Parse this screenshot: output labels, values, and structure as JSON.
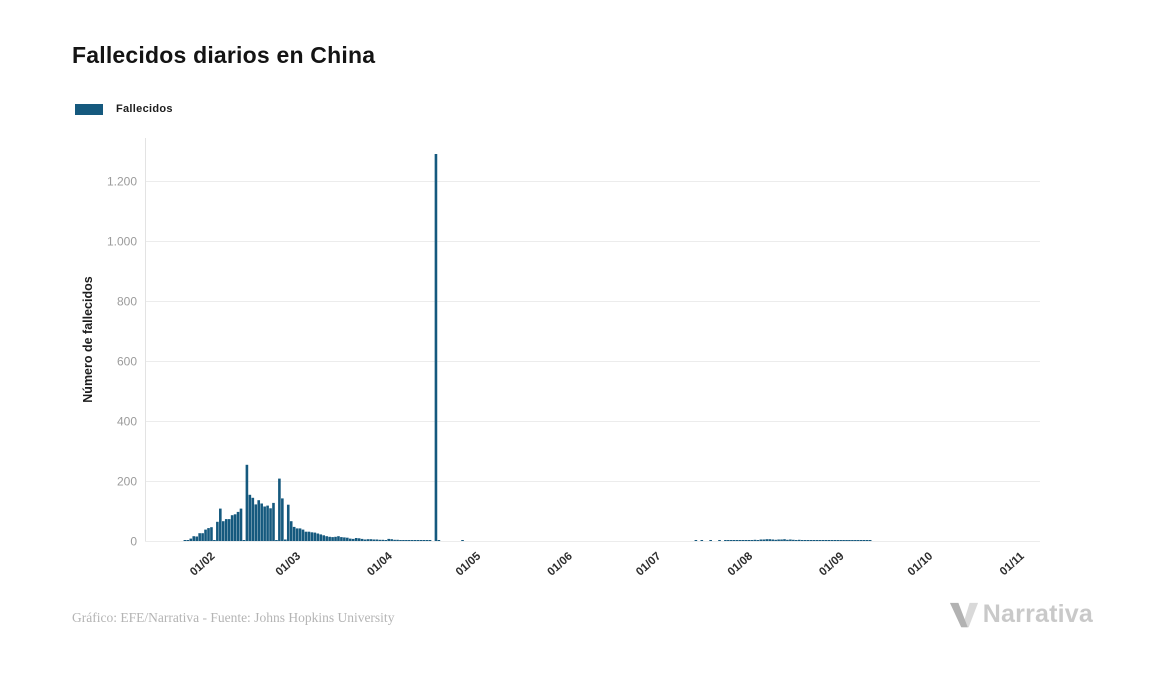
{
  "page": {
    "title": "Fallecidos diarios en China",
    "footer_credit": "Gráfico: EFE/Narrativa - Fuente: Johns Hopkins University",
    "brand": "Narrativa"
  },
  "legend": {
    "items": [
      {
        "label": "Fallecidos",
        "color": "#15597e"
      }
    ]
  },
  "colors": {
    "bar": "#15597e",
    "grid": "#ececec",
    "axis_line": "#e3e3e3",
    "y_tick_text": "#9b9b9b",
    "x_tick_text": "#2e2e2e",
    "axis_title_text": "#1c1c1c"
  },
  "chart_data": {
    "type": "bar",
    "title": "Fallecidos diarios en China",
    "series_name": "Fallecidos",
    "xlabel": "",
    "ylabel": "Número de fallecidos",
    "grid": true,
    "legend_position": "top-left",
    "ylim": [
      0,
      1340
    ],
    "bar_color": "#15597e",
    "y_ticks": [
      {
        "value": 0,
        "label": "0"
      },
      {
        "value": 200,
        "label": "200"
      },
      {
        "value": 400,
        "label": "400"
      },
      {
        "value": 600,
        "label": "600"
      },
      {
        "value": 800,
        "label": "800"
      },
      {
        "value": 1000,
        "label": "1.000"
      },
      {
        "value": 1200,
        "label": "1.200"
      }
    ],
    "x_domain": [
      "2020-01-10",
      "2020-11-08"
    ],
    "x_ticks": [
      {
        "date": "2020-02-01",
        "label": "01/02"
      },
      {
        "date": "2020-03-01",
        "label": "01/03"
      },
      {
        "date": "2020-04-01",
        "label": "01/04"
      },
      {
        "date": "2020-05-01",
        "label": "01/05"
      },
      {
        "date": "2020-06-01",
        "label": "01/06"
      },
      {
        "date": "2020-07-01",
        "label": "01/07"
      },
      {
        "date": "2020-08-01",
        "label": "01/08"
      },
      {
        "date": "2020-09-01",
        "label": "01/09"
      },
      {
        "date": "2020-10-01",
        "label": "01/10"
      },
      {
        "date": "2020-11-01",
        "label": "01/11"
      }
    ],
    "points_note": "daily deaths; dates not listed have value 0",
    "points": [
      [
        "2020-01-23",
        1
      ],
      [
        "2020-01-24",
        2
      ],
      [
        "2020-01-25",
        8
      ],
      [
        "2020-01-26",
        16
      ],
      [
        "2020-01-27",
        15
      ],
      [
        "2020-01-28",
        26
      ],
      [
        "2020-01-29",
        26
      ],
      [
        "2020-01-30",
        38
      ],
      [
        "2020-01-31",
        43
      ],
      [
        "2020-02-01",
        46
      ],
      [
        "2020-02-02",
        3
      ],
      [
        "2020-02-03",
        64
      ],
      [
        "2020-02-04",
        108
      ],
      [
        "2020-02-05",
        66
      ],
      [
        "2020-02-06",
        73
      ],
      [
        "2020-02-07",
        73
      ],
      [
        "2020-02-08",
        86
      ],
      [
        "2020-02-09",
        89
      ],
      [
        "2020-02-10",
        97
      ],
      [
        "2020-02-11",
        108
      ],
      [
        "2020-02-12",
        2
      ],
      [
        "2020-02-13",
        254
      ],
      [
        "2020-02-14",
        154
      ],
      [
        "2020-02-15",
        144
      ],
      [
        "2020-02-16",
        122
      ],
      [
        "2020-02-17",
        136
      ],
      [
        "2020-02-18",
        125
      ],
      [
        "2020-02-19",
        115
      ],
      [
        "2020-02-20",
        118
      ],
      [
        "2020-02-21",
        109
      ],
      [
        "2020-02-22",
        127
      ],
      [
        "2020-02-23",
        3
      ],
      [
        "2020-02-24",
        208
      ],
      [
        "2020-02-25",
        142
      ],
      [
        "2020-02-26",
        5
      ],
      [
        "2020-02-27",
        121
      ],
      [
        "2020-02-28",
        66
      ],
      [
        "2020-02-29",
        47
      ],
      [
        "2020-03-01",
        42
      ],
      [
        "2020-03-02",
        42
      ],
      [
        "2020-03-03",
        38
      ],
      [
        "2020-03-04",
        31
      ],
      [
        "2020-03-05",
        31
      ],
      [
        "2020-03-06",
        29
      ],
      [
        "2020-03-07",
        28
      ],
      [
        "2020-03-08",
        25
      ],
      [
        "2020-03-09",
        22
      ],
      [
        "2020-03-10",
        19
      ],
      [
        "2020-03-11",
        16
      ],
      [
        "2020-03-12",
        14
      ],
      [
        "2020-03-13",
        13
      ],
      [
        "2020-03-14",
        14
      ],
      [
        "2020-03-15",
        16
      ],
      [
        "2020-03-16",
        13
      ],
      [
        "2020-03-17",
        12
      ],
      [
        "2020-03-18",
        11
      ],
      [
        "2020-03-19",
        8
      ],
      [
        "2020-03-20",
        7
      ],
      [
        "2020-03-21",
        10
      ],
      [
        "2020-03-22",
        9
      ],
      [
        "2020-03-23",
        7
      ],
      [
        "2020-03-24",
        5
      ],
      [
        "2020-03-25",
        6
      ],
      [
        "2020-03-26",
        6
      ],
      [
        "2020-03-27",
        5
      ],
      [
        "2020-03-28",
        5
      ],
      [
        "2020-03-29",
        4
      ],
      [
        "2020-03-30",
        4
      ],
      [
        "2020-03-31",
        3
      ],
      [
        "2020-04-01",
        7
      ],
      [
        "2020-04-02",
        6
      ],
      [
        "2020-04-03",
        4
      ],
      [
        "2020-04-04",
        4
      ],
      [
        "2020-04-05",
        3
      ],
      [
        "2020-04-06",
        2
      ],
      [
        "2020-04-07",
        2
      ],
      [
        "2020-04-08",
        2
      ],
      [
        "2020-04-09",
        1
      ],
      [
        "2020-04-10",
        1
      ],
      [
        "2020-04-11",
        2
      ],
      [
        "2020-04-12",
        1
      ],
      [
        "2020-04-13",
        1
      ],
      [
        "2020-04-14",
        1
      ],
      [
        "2020-04-15",
        1
      ],
      [
        "2020-04-17",
        1290
      ],
      [
        "2020-04-18",
        1
      ],
      [
        "2020-04-26",
        1
      ],
      [
        "2020-07-14",
        1
      ],
      [
        "2020-07-16",
        1
      ],
      [
        "2020-07-19",
        1
      ],
      [
        "2020-07-22",
        2
      ],
      [
        "2020-07-24",
        2
      ],
      [
        "2020-07-25",
        1
      ],
      [
        "2020-07-26",
        2
      ],
      [
        "2020-07-27",
        1
      ],
      [
        "2020-07-28",
        3
      ],
      [
        "2020-07-29",
        2
      ],
      [
        "2020-07-30",
        3
      ],
      [
        "2020-07-31",
        3
      ],
      [
        "2020-08-01",
        3
      ],
      [
        "2020-08-02",
        2
      ],
      [
        "2020-08-03",
        4
      ],
      [
        "2020-08-04",
        3
      ],
      [
        "2020-08-05",
        5
      ],
      [
        "2020-08-06",
        5
      ],
      [
        "2020-08-07",
        6
      ],
      [
        "2020-08-08",
        6
      ],
      [
        "2020-08-09",
        5
      ],
      [
        "2020-08-10",
        4
      ],
      [
        "2020-08-11",
        5
      ],
      [
        "2020-08-12",
        5
      ],
      [
        "2020-08-13",
        6
      ],
      [
        "2020-08-14",
        4
      ],
      [
        "2020-08-15",
        5
      ],
      [
        "2020-08-16",
        4
      ],
      [
        "2020-08-17",
        3
      ],
      [
        "2020-08-18",
        4
      ],
      [
        "2020-08-19",
        3
      ],
      [
        "2020-08-20",
        2
      ],
      [
        "2020-08-21",
        3
      ],
      [
        "2020-08-22",
        2
      ],
      [
        "2020-08-23",
        3
      ],
      [
        "2020-08-24",
        2
      ],
      [
        "2020-08-25",
        2
      ],
      [
        "2020-08-26",
        1
      ],
      [
        "2020-08-27",
        2
      ],
      [
        "2020-08-28",
        1
      ],
      [
        "2020-08-29",
        2
      ],
      [
        "2020-08-30",
        1
      ],
      [
        "2020-08-31",
        2
      ],
      [
        "2020-09-01",
        2
      ],
      [
        "2020-09-02",
        1
      ],
      [
        "2020-09-03",
        2
      ],
      [
        "2020-09-04",
        1
      ],
      [
        "2020-09-05",
        3
      ],
      [
        "2020-09-06",
        1
      ],
      [
        "2020-09-07",
        1
      ],
      [
        "2020-09-08",
        1
      ],
      [
        "2020-09-09",
        1
      ],
      [
        "2020-09-10",
        1
      ],
      [
        "2020-09-11",
        2
      ]
    ]
  }
}
